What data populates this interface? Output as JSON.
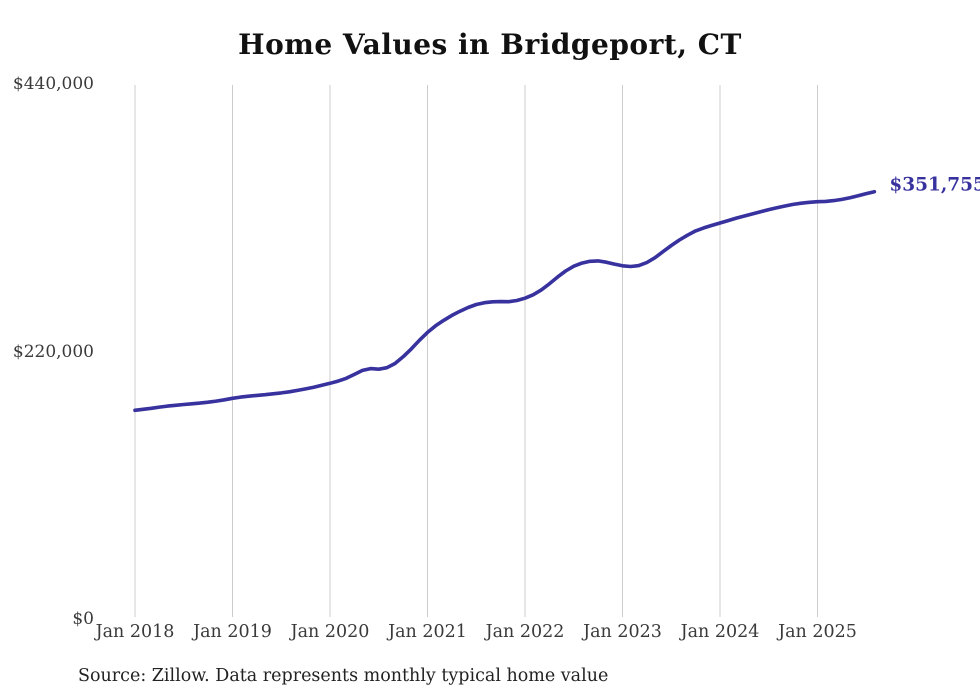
{
  "title": "Home Values in Bridgeport, CT",
  "source_note": "Source: Zillow. Data represents monthly typical home value",
  "end_label": "$351,755",
  "colors": {
    "line": "#38329e",
    "grid": "#cccccc",
    "tick_text": "#3a3a3a",
    "title_text": "#111111",
    "source_text": "#222222"
  },
  "chart_data": {
    "type": "line",
    "title": "Home Values in Bridgeport, CT",
    "xlabel": "",
    "ylabel": "",
    "ylim": [
      0,
      440000
    ],
    "grid": "vertical-only",
    "legend": "none",
    "y_ticks": [
      {
        "label": "$440,000",
        "value": 440000
      },
      {
        "label": "$220,000",
        "value": 220000
      },
      {
        "label": "$0",
        "value": 0
      }
    ],
    "x_ticks": [
      "Jan 2018",
      "Jan 2019",
      "Jan 2020",
      "Jan 2021",
      "Jan 2022",
      "Jan 2023",
      "Jan 2024",
      "Jan 2025"
    ],
    "x_monthly_start": "2018-01",
    "x_monthly_end": "2025-08",
    "last_point_label": "$351,755",
    "last_point_value": 351755,
    "values": [
      172000,
      172800,
      173600,
      174600,
      175400,
      176100,
      176700,
      177300,
      177900,
      178600,
      179500,
      180600,
      181800,
      182800,
      183600,
      184200,
      184800,
      185500,
      186300,
      187200,
      188300,
      189600,
      191000,
      192600,
      194200,
      196000,
      198300,
      201500,
      204800,
      206300,
      205800,
      207000,
      210500,
      216000,
      222500,
      229500,
      236000,
      241500,
      246000,
      250000,
      253500,
      256500,
      259000,
      260500,
      261200,
      261400,
      261300,
      262300,
      264200,
      267000,
      271000,
      276000,
      281500,
      286500,
      290500,
      293000,
      294500,
      294800,
      293800,
      292200,
      290800,
      290200,
      291000,
      293500,
      297500,
      302500,
      307500,
      312000,
      316000,
      319500,
      322000,
      324000,
      326000,
      328000,
      330000,
      331800,
      333500,
      335200,
      337000,
      338500,
      340000,
      341300,
      342300,
      343000,
      343500,
      343800,
      344400,
      345400,
      346800,
      348400,
      350200,
      351755
    ]
  }
}
